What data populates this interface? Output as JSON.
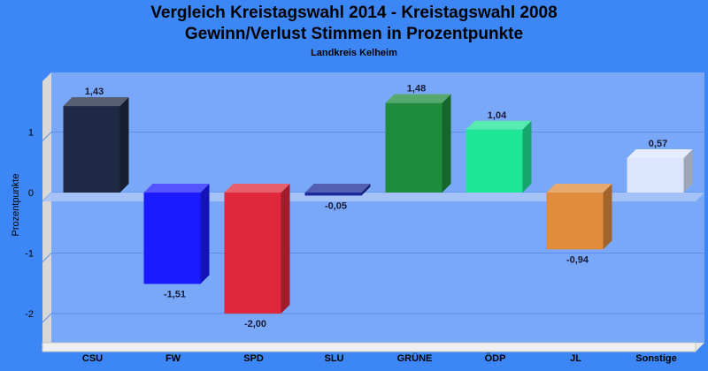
{
  "chart_data": {
    "type": "bar",
    "title": "Vergleich Kreistagswahl 2014 - Kreistagswahl 2008",
    "subtitle": "Gewinn/Verlust Stimmen in Prozentpunkte",
    "subtitle2": "Landkreis Kelheim",
    "xlabel": "",
    "ylabel": "Prozentpunkte",
    "ylim": [
      -2.5,
      2.0
    ],
    "yticks": [
      {
        "value": 1,
        "label": "1"
      },
      {
        "value": 0,
        "label": "0"
      },
      {
        "value": -1,
        "label": "-1"
      },
      {
        "value": -2,
        "label": "-2"
      }
    ],
    "grid": true,
    "categories": [
      "CSU",
      "FW",
      "SPD",
      "SLU",
      "GRÜNE",
      "ÖDP",
      "JL",
      "Sonstige"
    ],
    "values": [
      1.43,
      -1.51,
      -2.0,
      -0.05,
      1.48,
      1.04,
      -0.94,
      0.57
    ],
    "value_labels": [
      "1,43",
      "-1,51",
      "-2,00",
      "-0,05",
      "1,48",
      "1,04",
      "-0,94",
      "0,57"
    ],
    "colors": [
      "#1e2a45",
      "#1a1aff",
      "#e0283c",
      "#1a2a9a",
      "#1e8c3c",
      "#1ee696",
      "#e08c3c",
      "#dce6ff"
    ],
    "background_color": "#3c87f5",
    "plot_color": "#7aa8f8"
  }
}
